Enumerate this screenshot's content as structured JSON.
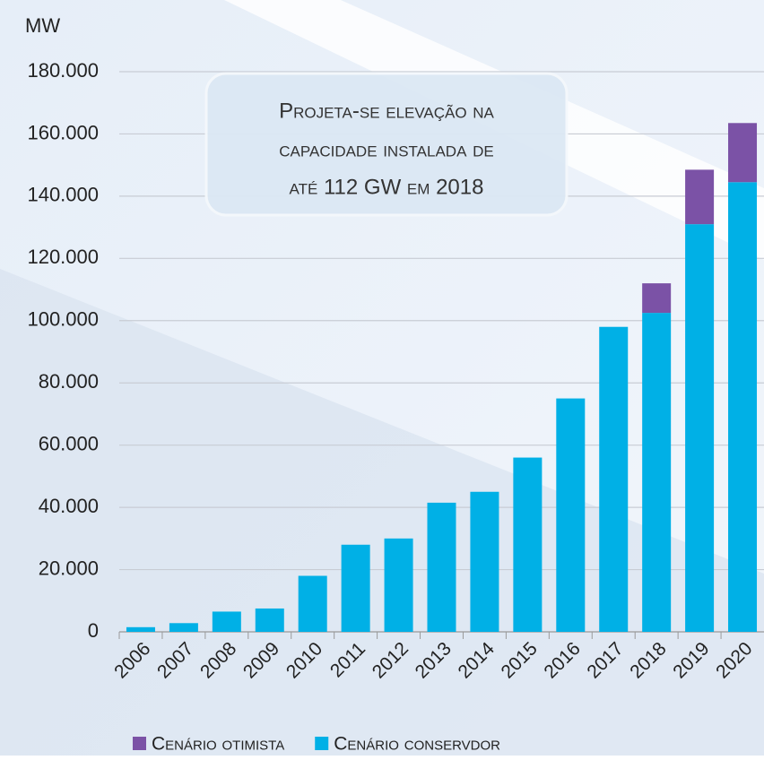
{
  "chart_data": {
    "type": "bar",
    "stacked": true,
    "y_label": "MW",
    "annotation": [
      "Projeta-se elevação na",
      "capacidade instalada de",
      "até 112 GW em 2018"
    ],
    "categories": [
      "2006",
      "2007",
      "2008",
      "2009",
      "2010",
      "2011",
      "2012",
      "2013",
      "2014",
      "2015",
      "2016",
      "2017",
      "2018",
      "2019",
      "2020"
    ],
    "series": [
      {
        "name": "Cenário conservdor",
        "color": "#00b0e6",
        "values": [
          1500,
          2800,
          6500,
          7500,
          18000,
          28000,
          30000,
          41500,
          45000,
          56000,
          75000,
          98000,
          102500,
          131000,
          144500
        ]
      },
      {
        "name": "Cenário otimista",
        "color": "#7b52a6",
        "values": [
          null,
          null,
          null,
          null,
          null,
          null,
          null,
          null,
          null,
          null,
          null,
          null,
          9500,
          17500,
          19000
        ]
      }
    ],
    "legend_order": [
      1,
      0
    ],
    "ylim": [
      0,
      180000
    ],
    "yticks": [
      0,
      {
        "value": 20000,
        "label": "20.000"
      },
      {
        "value": 40000,
        "label": "40.000"
      },
      {
        "value": 60000,
        "label": "60.000"
      },
      {
        "value": 80000,
        "label": "80.000"
      },
      {
        "value": 100000,
        "label": "100.000"
      },
      {
        "value": 120000,
        "label": "120.000"
      },
      {
        "value": 140000,
        "label": "140.000"
      },
      {
        "value": 160000,
        "label": "160.000"
      },
      {
        "value": 180000,
        "label": "180.000"
      }
    ],
    "grid": true
  }
}
